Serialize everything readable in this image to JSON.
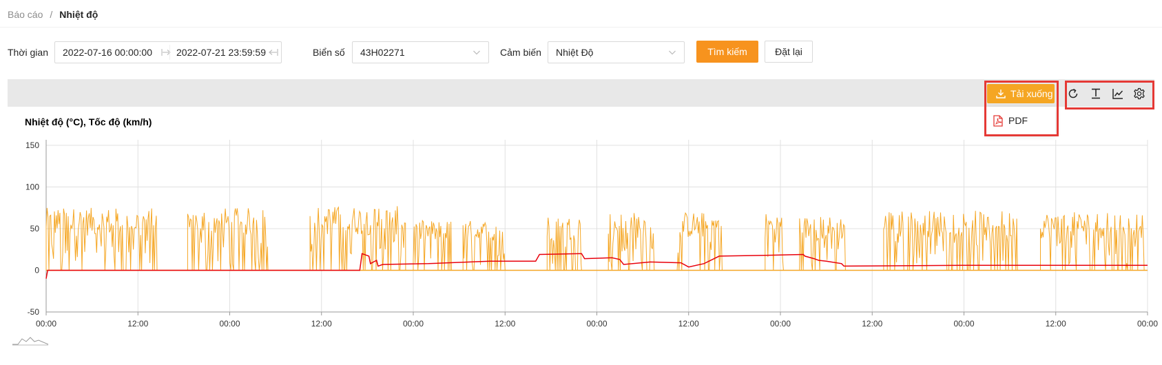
{
  "breadcrumb": {
    "root": "Báo cáo",
    "separator": "/",
    "current": "Nhiệt độ"
  },
  "filters": {
    "time_label": "Thời gian",
    "time_start": "2022-07-16 00:00:00",
    "time_end": "2022-07-21 23:59:59",
    "plate_label": "Biển số",
    "plate_value": "43H02271",
    "sensor_label": "Cảm biến",
    "sensor_value": "Nhiệt Độ"
  },
  "buttons": {
    "search": "Tìm kiếm",
    "reset": "Đặt lại"
  },
  "toolbar": {
    "download_label": "Tải xuống",
    "download_options": [
      "PDF"
    ],
    "icons": [
      "refresh-icon",
      "text-cursor-icon",
      "line-chart-icon",
      "gear-icon"
    ]
  },
  "colors": {
    "primary": "#f7931e",
    "download": "#f5a623",
    "highlight": "#e53935",
    "temperature": "#e8000b",
    "speed": "#f5a623"
  },
  "chart_data": {
    "type": "line",
    "title": "Nhiệt độ (°C), Tốc độ (km/h)",
    "ylim": [
      -50,
      150
    ],
    "yticks": [
      150,
      100,
      50,
      0,
      -50
    ],
    "xticks": [
      "00:00",
      "12:00",
      "00:00",
      "12:00",
      "00:00",
      "12:00",
      "00:00",
      "12:00",
      "00:00",
      "12:00",
      "00:00",
      "12:00",
      "00:00"
    ],
    "grid": true,
    "series": [
      {
        "color": "#e8000b",
        "points": [
          [
            0,
            -10
          ],
          [
            0.2,
            0
          ],
          [
            41,
            0
          ],
          [
            41.3,
            20
          ],
          [
            42.2,
            17
          ],
          [
            42.4,
            8
          ],
          [
            43.2,
            12
          ],
          [
            43.4,
            5
          ],
          [
            44,
            7
          ],
          [
            50,
            8
          ],
          [
            58,
            11
          ],
          [
            64,
            11
          ],
          [
            64.5,
            19
          ],
          [
            70,
            20
          ],
          [
            70.4,
            14
          ],
          [
            74,
            15
          ],
          [
            75,
            13
          ],
          [
            75.5,
            7
          ],
          [
            79,
            10
          ],
          [
            83,
            9
          ],
          [
            84,
            4
          ],
          [
            86,
            8
          ],
          [
            88,
            17
          ],
          [
            94,
            18
          ],
          [
            99,
            19
          ],
          [
            99.2,
            17
          ],
          [
            100.4,
            14
          ],
          [
            101,
            12
          ],
          [
            102,
            11
          ],
          [
            104,
            8
          ],
          [
            104.3,
            5
          ],
          [
            120,
            6
          ],
          [
            130,
            6
          ],
          [
            140,
            6
          ],
          [
            144,
            6
          ]
        ]
      },
      {
        "color": "#f5a623",
        "segments": [
          {
            "start": 0,
            "end": 14.5,
            "peak": 75
          },
          {
            "start": 18.5,
            "end": 29,
            "peak": 75
          },
          {
            "start": 34.5,
            "end": 47,
            "peak": 77
          },
          {
            "start": 48,
            "end": 53,
            "peak": 60
          },
          {
            "start": 54.5,
            "end": 60,
            "peak": 60
          },
          {
            "start": 65.5,
            "end": 70,
            "peak": 65
          },
          {
            "start": 73.5,
            "end": 79.5,
            "peak": 70
          },
          {
            "start": 82.5,
            "end": 88.5,
            "peak": 70
          },
          {
            "start": 94,
            "end": 96.5,
            "peak": 70
          },
          {
            "start": 98.5,
            "end": 104.5,
            "peak": 65
          },
          {
            "start": 109.5,
            "end": 127,
            "peak": 72
          },
          {
            "start": 130,
            "end": 144,
            "peak": 70
          }
        ]
      }
    ]
  }
}
